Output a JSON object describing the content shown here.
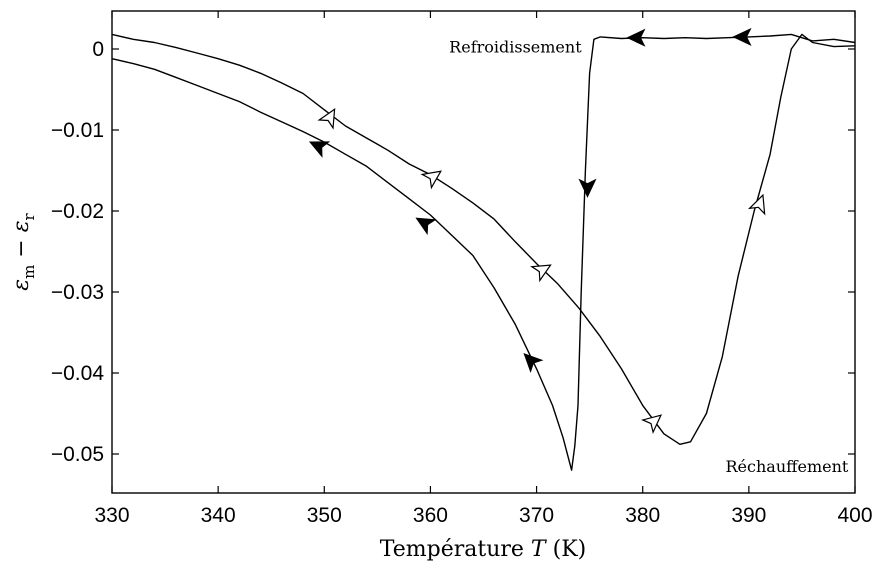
{
  "chart_data": {
    "type": "line",
    "title": "",
    "xlabel": "Température T (K)",
    "xlabel_text": "Température",
    "xlabel_var": "T",
    "xlabel_unit": "(K)",
    "ylabel": "ε_m − ε_r",
    "ylabel_parts": {
      "eps1": "ε",
      "sub1": "m",
      "minus": "−",
      "eps2": "ε",
      "sub2": "r"
    },
    "xlim": [
      330,
      400
    ],
    "ylim": [
      -0.055,
      0.005
    ],
    "xticks": [
      330,
      340,
      350,
      360,
      370,
      380,
      390,
      400
    ],
    "yticks": [
      0,
      -0.01,
      -0.02,
      -0.03,
      -0.04,
      -0.05
    ],
    "ytick_labels": [
      "0",
      "−0.01",
      "−0.02",
      "−0.03",
      "−0.04",
      "−0.05"
    ],
    "grid": false,
    "annotations": [
      {
        "text": "Refroidissement",
        "x": 375,
        "y": 0.0003,
        "anchor": "end"
      },
      {
        "text": "Réchauffement",
        "x": 387.8,
        "y": -0.0515,
        "anchor": "start"
      }
    ],
    "series": [
      {
        "arrow_style": "filled",
        "points": [
          [
            400,
            0.0008
          ],
          [
            398,
            0.0012
          ],
          [
            396,
            0.001
          ],
          [
            394,
            0.0018
          ],
          [
            392,
            0.0016
          ],
          [
            390,
            0.0015
          ],
          [
            388,
            0.0014
          ],
          [
            386,
            0.0013
          ],
          [
            384,
            0.0014
          ],
          [
            382,
            0.0013
          ],
          [
            380,
            0.0014
          ],
          [
            378,
            0.0013
          ],
          [
            376,
            0.0015
          ],
          [
            375.4,
            0.0012
          ],
          [
            375.0,
            -0.003
          ],
          [
            374.6,
            -0.015
          ],
          [
            374.2,
            -0.03
          ],
          [
            373.9,
            -0.044
          ],
          [
            373.6,
            -0.049
          ],
          [
            373.3,
            -0.052
          ],
          [
            372.5,
            -0.048
          ],
          [
            371.5,
            -0.044
          ],
          [
            370,
            -0.0395
          ],
          [
            368,
            -0.034
          ],
          [
            366,
            -0.0295
          ],
          [
            364,
            -0.0255
          ],
          [
            362,
            -0.023
          ],
          [
            360,
            -0.0205
          ],
          [
            358,
            -0.0185
          ],
          [
            356,
            -0.0165
          ],
          [
            354,
            -0.0145
          ],
          [
            352,
            -0.013
          ],
          [
            350,
            -0.0115
          ],
          [
            348,
            -0.0102
          ],
          [
            346,
            -0.009
          ],
          [
            344,
            -0.0078
          ],
          [
            342,
            -0.0065
          ],
          [
            340,
            -0.0055
          ],
          [
            338,
            -0.0045
          ],
          [
            336,
            -0.0035
          ],
          [
            334,
            -0.0025
          ],
          [
            332,
            -0.0018
          ],
          [
            330,
            -0.0012
          ]
        ],
        "arrows": [
          [
            389.5,
            0.0015,
            180
          ],
          [
            379.5,
            0.0014,
            180
          ],
          [
            374.8,
            -0.017,
            90
          ],
          [
            369.5,
            -0.0385,
            225
          ],
          [
            359.5,
            -0.0215,
            210
          ],
          [
            349.5,
            -0.012,
            205
          ]
        ]
      },
      {
        "arrow_style": "open",
        "points": [
          [
            330,
            0.0018
          ],
          [
            332,
            0.0012
          ],
          [
            334,
            0.0008
          ],
          [
            336,
            0.0002
          ],
          [
            338,
            -0.0005
          ],
          [
            340,
            -0.0012
          ],
          [
            342,
            -0.002
          ],
          [
            344,
            -0.003
          ],
          [
            346,
            -0.0042
          ],
          [
            348,
            -0.0055
          ],
          [
            350,
            -0.0075
          ],
          [
            352,
            -0.0095
          ],
          [
            354,
            -0.011
          ],
          [
            356,
            -0.0125
          ],
          [
            358,
            -0.0142
          ],
          [
            360,
            -0.0155
          ],
          [
            362,
            -0.0172
          ],
          [
            364,
            -0.019
          ],
          [
            366,
            -0.021
          ],
          [
            368,
            -0.0238
          ],
          [
            370,
            -0.0265
          ],
          [
            372,
            -0.029
          ],
          [
            374,
            -0.032
          ],
          [
            376,
            -0.0355
          ],
          [
            378,
            -0.0395
          ],
          [
            380,
            -0.044
          ],
          [
            382,
            -0.0475
          ],
          [
            383.5,
            -0.0488
          ],
          [
            384.5,
            -0.0485
          ],
          [
            386,
            -0.045
          ],
          [
            387.5,
            -0.038
          ],
          [
            389,
            -0.028
          ],
          [
            390.5,
            -0.02
          ],
          [
            392,
            -0.013
          ],
          [
            393,
            -0.006
          ],
          [
            394,
            0.0
          ],
          [
            395,
            0.0018
          ],
          [
            396,
            0.0008
          ],
          [
            398,
            0.0003
          ],
          [
            400,
            0.0004
          ]
        ],
        "arrows": [
          [
            350.5,
            -0.0085,
            -60
          ],
          [
            360.2,
            -0.0158,
            -35
          ],
          [
            370.5,
            -0.0273,
            -30
          ],
          [
            381,
            -0.046,
            -40
          ],
          [
            391,
            -0.0192,
            -70
          ]
        ]
      }
    ]
  }
}
